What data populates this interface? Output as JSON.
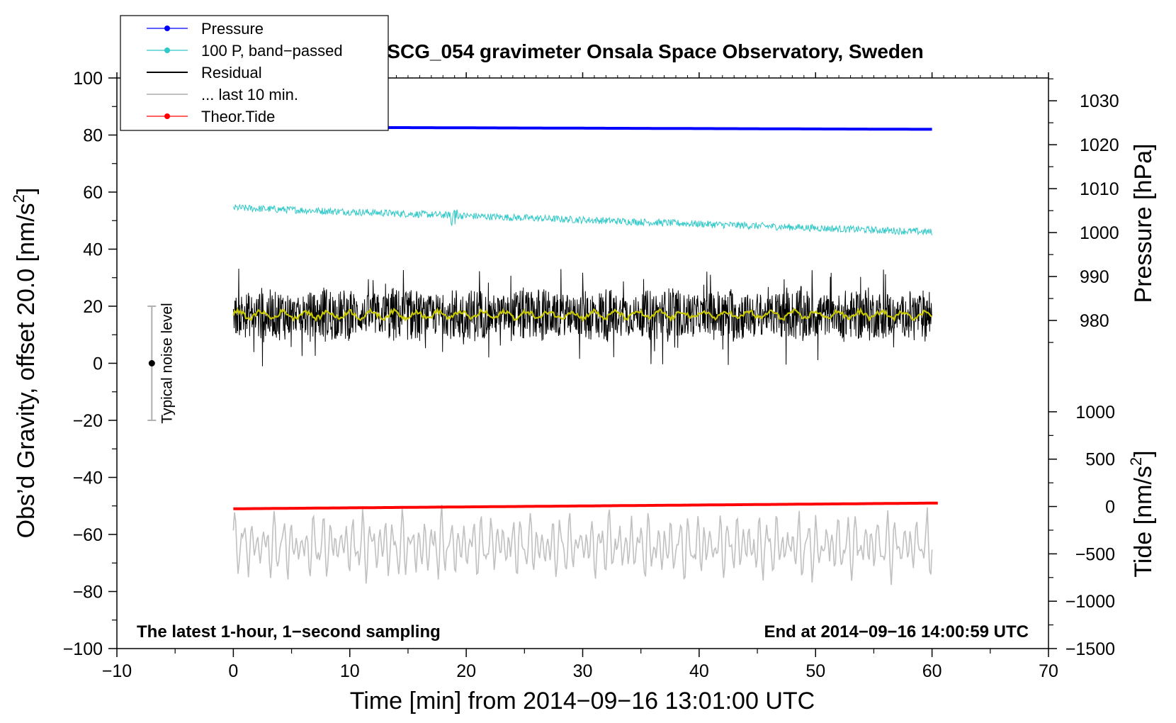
{
  "chart_data": {
    "type": "line",
    "title": "SCG_054 gravimeter Onsala Space Observatory, Sweden",
    "xlabel": "Time [min] from 2014−09−16 13:01:00 UTC",
    "ylabel": "Obs’d Gravity, offset 20.0 [nm/s²]",
    "ylabel_left_main": "Obs’d Gravity, offset 20.0 [nm/s",
    "ylabel_left_sup": "2",
    "ylabel_left_close": "]",
    "right_pressure_label": "Pressure [hPa]",
    "right_tide_label_main": "Tide [nm/s",
    "right_tide_label_sup": "2",
    "right_tide_label_close": "]",
    "xlim": [
      -10,
      70
    ],
    "ylim": [
      -100,
      100
    ],
    "x_ticks": [
      -10,
      0,
      10,
      20,
      30,
      40,
      50,
      60,
      70
    ],
    "x_tick_labels": [
      "−10",
      "0",
      "10",
      "20",
      "30",
      "40",
      "50",
      "60",
      "70"
    ],
    "y_ticks": [
      -100,
      -80,
      -60,
      -40,
      -20,
      0,
      20,
      40,
      60,
      80,
      100
    ],
    "y_tick_labels": [
      "−100",
      "−80",
      "−60",
      "−40",
      "−20",
      "0",
      "20",
      "40",
      "60",
      "80",
      "100"
    ],
    "pressure_axis": {
      "ticks": [
        980,
        990,
        1000,
        1010,
        1020,
        1030
      ],
      "tick_labels": [
        "980",
        "990",
        "1000",
        "1010",
        "1020",
        "1030"
      ],
      "mapping": {
        "value_a": 980,
        "gravity_a": 15,
        "value_b": 1030,
        "gravity_b": 92
      }
    },
    "tide_axis": {
      "ticks": [
        -1500,
        -1000,
        -500,
        0,
        500,
        1000
      ],
      "tick_labels": [
        "−1500",
        "−1000",
        "−500",
        "0",
        "500",
        "1000"
      ],
      "mapping": {
        "value_a": -1500,
        "gravity_a": -100,
        "value_b": 1000,
        "gravity_b": -17
      }
    },
    "annotation_left": "The latest 1-hour, 1−second sampling",
    "annotation_right": "End at 2014−09−16 14:00:59 UTC",
    "noise_bar": {
      "label": "Typical noise level",
      "x": -7,
      "center": 0,
      "low": -20,
      "high": 20
    },
    "legend": [
      {
        "label": "Pressure",
        "color": "#0000ff",
        "marker": true
      },
      {
        "label": "100 P, band−passed",
        "color": "#30c8c8",
        "marker": true
      },
      {
        "label": "Residual",
        "color": "#000000",
        "marker": false
      },
      {
        "label": "... last 10 min.",
        "color": "#c0c0c0",
        "marker": false
      },
      {
        "label": "Theor.Tide",
        "color": "#ff0000",
        "marker": true
      }
    ],
    "series": [
      {
        "name": "Pressure",
        "color": "#0000ff",
        "axis": "left",
        "x_range": [
          0,
          60
        ],
        "start": 82.8,
        "end": 82.0
      },
      {
        "name": "100 P, band−passed",
        "color": "#30c8c8",
        "axis": "left",
        "x_range": [
          0,
          60
        ],
        "start": 54.5,
        "end": 46.0,
        "noise_amplitude": 2.5
      },
      {
        "name": "Residual",
        "color": "#000000",
        "axis": "left",
        "x_range": [
          0,
          60
        ],
        "mean": 17,
        "min": -6,
        "max": 35
      },
      {
        "name": "Residual smoothed",
        "color": "#c8c800",
        "axis": "left",
        "x_range": [
          0,
          60
        ],
        "mean": 17
      },
      {
        "name": "... last 10 min.",
        "color": "#c0c0c0",
        "axis": "left",
        "x_range": [
          0,
          60
        ],
        "mean": -64,
        "min": -80,
        "max": -49
      },
      {
        "name": "Theor.Tide",
        "color": "#ff0000",
        "axis": "left",
        "x_range": [
          0,
          60.5
        ],
        "start": -51,
        "end": -49
      }
    ]
  }
}
